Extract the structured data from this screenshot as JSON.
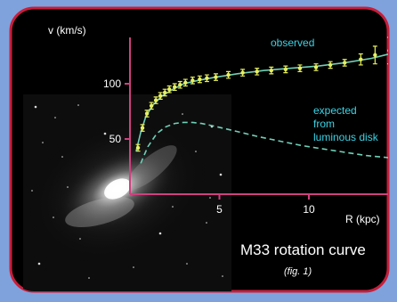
{
  "chart_data": {
    "type": "line",
    "title": "M33 rotation curve",
    "caption": "(fig. 1)",
    "ylabel": "v (km/s)",
    "xlabel": "R (kpc)",
    "y_ticks": [
      50,
      100
    ],
    "x_ticks": [
      5,
      10
    ],
    "xlim": [
      0,
      14.5
    ],
    "ylim": [
      0,
      135
    ],
    "grid": false,
    "series": [
      {
        "name": "observed",
        "style": "points-with-errorbars",
        "color": "#e8f060",
        "x": [
          0.45,
          0.7,
          0.95,
          1.2,
          1.45,
          1.7,
          1.95,
          2.2,
          2.5,
          2.8,
          3.1,
          3.5,
          3.9,
          4.3,
          4.8,
          5.5,
          6.3,
          7.1,
          7.9,
          8.7,
          9.5,
          10.4,
          11.2,
          12.0,
          12.9,
          13.7,
          14.5
        ],
        "y": [
          42,
          60,
          73,
          80,
          85,
          89,
          92,
          95,
          97,
          99,
          101,
          103,
          104,
          105,
          106,
          108,
          110,
          111,
          112,
          113,
          114,
          115,
          117,
          119,
          122,
          126,
          130
        ],
        "err": [
          3,
          3,
          3,
          3,
          3,
          3,
          3,
          3,
          3,
          3,
          3,
          3,
          3,
          3,
          3,
          3,
          3,
          3,
          3,
          3,
          3,
          3,
          3,
          3,
          5,
          8,
          12
        ]
      },
      {
        "name": "observed fit",
        "style": "solid-line",
        "color": "#6fd0b6",
        "x": [
          0.35,
          0.6,
          0.9,
          1.3,
          1.8,
          2.4,
          3.0,
          3.8,
          4.8,
          6.0,
          7.5,
          9.0,
          10.5,
          12.0,
          13.5,
          14.5
        ],
        "y": [
          39,
          56,
          71,
          81,
          89,
          95,
          100,
          103,
          106,
          109,
          112,
          114,
          116,
          119,
          123,
          127
        ]
      },
      {
        "name": "expected from luminous disk",
        "style": "dashed-line",
        "color": "#6fd0b6",
        "x": [
          0.6,
          1.0,
          1.5,
          2.0,
          2.5,
          3.0,
          3.5,
          4.0,
          4.6,
          5.4,
          6.2,
          7.2,
          8.4,
          9.6,
          10.8,
          12.0,
          13.2,
          14.5
        ],
        "y": [
          28,
          43,
          55,
          61,
          64,
          65,
          65,
          64,
          62,
          59,
          56,
          52,
          48,
          44,
          41,
          38,
          35,
          33
        ]
      }
    ],
    "labels": {
      "observed": "observed",
      "expected_line1": "expected",
      "expected_line2": "from",
      "expected_line3": "luminous disk"
    }
  },
  "colors": {
    "page_background": "#7fa2dc",
    "panel_background": "#000000",
    "panel_border": "#c81e3a",
    "axis": "#d0407e",
    "label_cyan": "#3ad4e6",
    "text_white": "#ffffff"
  }
}
